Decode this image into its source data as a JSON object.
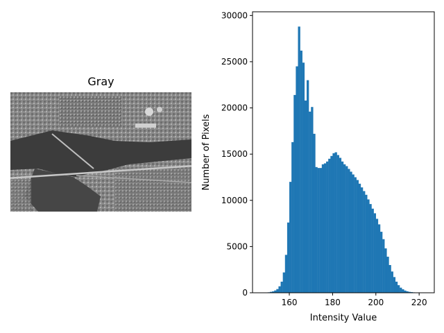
{
  "image_panel": {
    "title": "Gray",
    "description_icon": "aerial-photo"
  },
  "chart_data": {
    "type": "bar",
    "subtype": "histogram",
    "title": "",
    "xlabel": "Intensity Value",
    "ylabel": "Number of Pixels",
    "xlim": [
      143,
      227
    ],
    "ylim": [
      0,
      30400
    ],
    "xticks": [
      "160",
      "180",
      "200",
      "220"
    ],
    "xtick_values": [
      160,
      180,
      200,
      220
    ],
    "yticks": [
      "0",
      "5000",
      "10000",
      "15000",
      "20000",
      "25000",
      "30000"
    ],
    "ytick_values": [
      0,
      5000,
      10000,
      15000,
      20000,
      25000,
      30000
    ],
    "bar_color": "#1f77b4",
    "grid": false,
    "bins_x": [
      149,
      150,
      151,
      152,
      153,
      154,
      155,
      156,
      157,
      158,
      159,
      160,
      161,
      162,
      163,
      164,
      165,
      166,
      167,
      168,
      169,
      170,
      171,
      172,
      173,
      174,
      175,
      176,
      177,
      178,
      179,
      180,
      181,
      182,
      183,
      184,
      185,
      186,
      187,
      188,
      189,
      190,
      191,
      192,
      193,
      194,
      195,
      196,
      197,
      198,
      199,
      200,
      201,
      202,
      203,
      204,
      205,
      206,
      207,
      208,
      209,
      210,
      211,
      212,
      213,
      214,
      215,
      216,
      217,
      218,
      219,
      220,
      221,
      222
    ],
    "values": [
      20,
      50,
      100,
      150,
      250,
      400,
      700,
      1200,
      2200,
      4100,
      7600,
      12000,
      16300,
      21400,
      24500,
      28800,
      26200,
      24900,
      20800,
      23000,
      19600,
      20100,
      17200,
      13600,
      13500,
      13500,
      13900,
      14000,
      14200,
      14500,
      14800,
      15100,
      15200,
      14900,
      14600,
      14200,
      13900,
      13700,
      13400,
      13100,
      12800,
      12500,
      12200,
      11800,
      11400,
      11000,
      10600,
      10100,
      9600,
      9100,
      8600,
      8000,
      7400,
      6600,
      5800,
      4800,
      3900,
      3000,
      2300,
      1700,
      1200,
      820,
      550,
      380,
      240,
      160,
      100,
      70,
      45,
      30,
      20,
      12,
      8,
      4
    ]
  }
}
